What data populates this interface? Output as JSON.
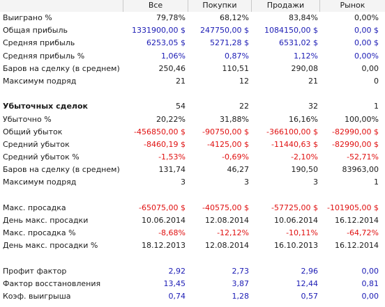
{
  "columns": [
    "Все",
    "Покупки",
    "Продажи",
    "Рынок"
  ],
  "colors": {
    "black": "#1a1a1a",
    "blue": "#1a1ab4",
    "red": "#e01010"
  },
  "rows": [
    {
      "label": "Выиграно %",
      "values": [
        "79,78%",
        "68,12%",
        "83,84%",
        "0,00%"
      ],
      "color": "black"
    },
    {
      "label": "Общая прибыль",
      "values": [
        "1331900,00 $",
        "247750,00 $",
        "1084150,00 $",
        "0,00 $"
      ],
      "color": "blue"
    },
    {
      "label": "Средняя прибыль",
      "values": [
        "6253,05 $",
        "5271,28 $",
        "6531,02 $",
        "0,00 $"
      ],
      "color": "blue"
    },
    {
      "label": "Средняя прибыль %",
      "values": [
        "1,06%",
        "0,87%",
        "1,12%",
        "0,00%"
      ],
      "color": "blue"
    },
    {
      "label": "Баров на сделку (в среднем)",
      "values": [
        "250,46",
        "110,51",
        "290,08",
        "0,00"
      ],
      "color": "black"
    },
    {
      "label": "Максимум подряд",
      "values": [
        "21",
        "12",
        "21",
        "0"
      ],
      "color": "black"
    },
    {
      "blank": true
    },
    {
      "label": "Убыточных сделок",
      "values": [
        "54",
        "22",
        "32",
        "1"
      ],
      "color": "black",
      "bold": true
    },
    {
      "label": "Убыточно %",
      "values": [
        "20,22%",
        "31,88%",
        "16,16%",
        "100,00%"
      ],
      "color": "black"
    },
    {
      "label": "Общий убыток",
      "values": [
        "-456850,00 $",
        "-90750,00 $",
        "-366100,00 $",
        "-82990,00 $"
      ],
      "color": "red"
    },
    {
      "label": "Средний убыток",
      "values": [
        "-8460,19 $",
        "-4125,00 $",
        "-11440,63 $",
        "-82990,00 $"
      ],
      "color": "red"
    },
    {
      "label": "Средний убыток %",
      "values": [
        "-1,53%",
        "-0,69%",
        "-2,10%",
        "-52,71%"
      ],
      "color": "red"
    },
    {
      "label": "Баров на сделку (в среднем)",
      "values": [
        "131,74",
        "46,27",
        "190,50",
        "83963,00"
      ],
      "color": "black"
    },
    {
      "label": "Максимум подряд",
      "values": [
        "3",
        "3",
        "3",
        "1"
      ],
      "color": "black"
    },
    {
      "blank": true
    },
    {
      "label": "Макс. просадка",
      "values": [
        "-65075,00 $",
        "-40575,00 $",
        "-57725,00 $",
        "-101905,00 $"
      ],
      "color": "red"
    },
    {
      "label": "День макс. просадки",
      "values": [
        "10.06.2014",
        "12.08.2014",
        "10.06.2014",
        "16.12.2014"
      ],
      "color": "black"
    },
    {
      "label": "Макс. просадка %",
      "values": [
        "-8,68%",
        "-12,12%",
        "-10,11%",
        "-64,72%"
      ],
      "color": "red"
    },
    {
      "label": "День макс. просадки %",
      "values": [
        "18.12.2013",
        "12.08.2014",
        "16.10.2013",
        "16.12.2014"
      ],
      "color": "black"
    },
    {
      "blank": true
    },
    {
      "label": "Профит фактор",
      "values": [
        "2,92",
        "2,73",
        "2,96",
        "0,00"
      ],
      "color": "blue"
    },
    {
      "label": "Фактор восстановления",
      "values": [
        "13,45",
        "3,87",
        "12,44",
        "0,81"
      ],
      "color": "blue"
    },
    {
      "label": "Коэф. выигрыша",
      "values": [
        "0,74",
        "1,28",
        "0,57",
        "0,00"
      ],
      "color": "blue"
    }
  ]
}
